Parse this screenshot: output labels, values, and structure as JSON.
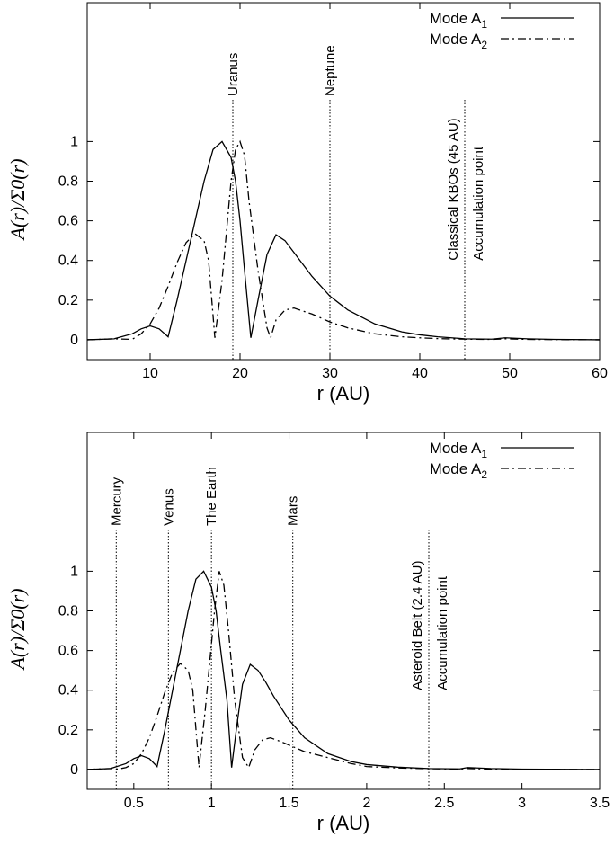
{
  "chart_data": [
    {
      "type": "line",
      "xlabel": "r (AU)",
      "ylabel": "A(r)/Σ0(r)",
      "xlim": [
        3,
        60
      ],
      "ylim": [
        -0.1,
        1.7
      ],
      "xticks": [
        10,
        20,
        30,
        40,
        50,
        60
      ],
      "yticks": [
        0,
        0.2,
        0.4,
        0.6,
        0.8,
        1
      ],
      "legend": {
        "placement": "top-right",
        "entries": [
          {
            "label": "Mode A",
            "sub": "1",
            "style": "solid"
          },
          {
            "label": "Mode A",
            "sub": "2",
            "style": "dash-dot"
          }
        ]
      },
      "annotations": [
        {
          "x": 19.2,
          "label": "Uranus"
        },
        {
          "x": 30.0,
          "label": "Neptune"
        },
        {
          "x": 45.0,
          "label": "Classical KBOs (45 AU)",
          "label2": "Accumulation point"
        }
      ],
      "series": [
        {
          "name": "Mode A1",
          "style": "solid",
          "x": [
            3,
            6,
            8,
            9,
            10,
            11,
            12,
            13,
            14,
            15,
            16,
            17,
            18,
            19,
            19.5,
            20,
            20.5,
            21.2,
            22,
            23,
            24,
            25,
            26,
            28,
            30,
            32,
            35,
            38,
            40,
            42,
            45,
            48,
            49.5,
            52,
            55,
            60
          ],
          "y": [
            0,
            0.005,
            0.03,
            0.055,
            0.07,
            0.055,
            0.015,
            0.2,
            0.4,
            0.6,
            0.8,
            0.96,
            1.0,
            0.92,
            0.8,
            0.6,
            0.35,
            0.01,
            0.2,
            0.43,
            0.53,
            0.5,
            0.44,
            0.32,
            0.22,
            0.15,
            0.08,
            0.04,
            0.025,
            0.015,
            0.005,
            0.003,
            0.01,
            0.005,
            0.002,
            0
          ]
        },
        {
          "name": "Mode A2",
          "style": "dash-dot",
          "x": [
            3,
            6,
            8,
            9,
            10,
            11,
            12,
            13,
            14,
            15,
            16,
            16.5,
            17.2,
            18,
            18.5,
            19,
            19.5,
            20,
            20.5,
            21,
            22,
            23,
            23.4,
            24,
            25,
            26,
            28,
            30,
            32,
            35,
            38,
            40,
            42,
            45,
            48,
            49.5,
            52,
            55,
            60
          ],
          "y": [
            0,
            0.005,
            0.002,
            0.03,
            0.08,
            0.16,
            0.27,
            0.39,
            0.49,
            0.535,
            0.5,
            0.4,
            0.01,
            0.3,
            0.55,
            0.8,
            0.96,
            1.0,
            0.93,
            0.7,
            0.35,
            0.06,
            0.01,
            0.1,
            0.15,
            0.16,
            0.13,
            0.09,
            0.06,
            0.03,
            0.015,
            0.01,
            0.006,
            0.003,
            0.002,
            0.005,
            0.002,
            0.001,
            0
          ]
        }
      ]
    },
    {
      "type": "line",
      "xlabel": "r (AU)",
      "ylabel": "A(r)/Σ0(r)",
      "xlim": [
        0.2,
        3.5
      ],
      "ylim": [
        -0.1,
        1.7
      ],
      "xticks": [
        0.5,
        1,
        1.5,
        2,
        2.5,
        3,
        3.5
      ],
      "xticklabels": [
        "0.5",
        "1",
        "1.5",
        "2",
        "2.5",
        "3",
        "3.5"
      ],
      "yticks": [
        0,
        0.2,
        0.4,
        0.6,
        0.8,
        1
      ],
      "legend": {
        "placement": "top-right",
        "entries": [
          {
            "label": "Mode A",
            "sub": "1",
            "style": "solid"
          },
          {
            "label": "Mode A",
            "sub": "2",
            "style": "dash-dot"
          }
        ]
      },
      "annotations": [
        {
          "x": 0.387,
          "label": "Mercury"
        },
        {
          "x": 0.723,
          "label": "Venus"
        },
        {
          "x": 1.0,
          "label": "The Earth"
        },
        {
          "x": 1.524,
          "label": "Mars"
        },
        {
          "x": 2.4,
          "label": "Asteroid Belt (2.4 AU)",
          "label2": "Accumulation point"
        }
      ],
      "series": [
        {
          "name": "Mode A1",
          "style": "solid",
          "x": [
            0.2,
            0.35,
            0.45,
            0.5,
            0.55,
            0.6,
            0.65,
            0.7,
            0.75,
            0.8,
            0.85,
            0.9,
            0.95,
            1.0,
            1.03,
            1.06,
            1.1,
            1.13,
            1.16,
            1.2,
            1.25,
            1.3,
            1.35,
            1.4,
            1.5,
            1.6,
            1.75,
            1.9,
            2.0,
            2.2,
            2.4,
            2.6,
            2.65,
            2.8,
            3.0,
            3.5
          ],
          "y": [
            0,
            0.005,
            0.03,
            0.055,
            0.07,
            0.055,
            0.015,
            0.2,
            0.4,
            0.6,
            0.8,
            0.96,
            1.0,
            0.92,
            0.8,
            0.6,
            0.35,
            0.01,
            0.2,
            0.43,
            0.53,
            0.5,
            0.44,
            0.37,
            0.25,
            0.16,
            0.08,
            0.04,
            0.025,
            0.012,
            0.005,
            0.003,
            0.01,
            0.005,
            0.002,
            0
          ]
        },
        {
          "name": "Mode A2",
          "style": "dash-dot",
          "x": [
            0.2,
            0.35,
            0.4,
            0.45,
            0.5,
            0.55,
            0.6,
            0.65,
            0.7,
            0.75,
            0.8,
            0.85,
            0.88,
            0.92,
            0.96,
            0.99,
            1.02,
            1.05,
            1.08,
            1.11,
            1.15,
            1.2,
            1.24,
            1.28,
            1.33,
            1.38,
            1.45,
            1.6,
            1.75,
            1.9,
            2.0,
            2.2,
            2.4,
            2.6,
            2.65,
            2.8,
            3.0,
            3.5
          ],
          "y": [
            0,
            0.005,
            0.002,
            0.01,
            0.03,
            0.08,
            0.16,
            0.27,
            0.39,
            0.49,
            0.535,
            0.5,
            0.4,
            0.01,
            0.3,
            0.55,
            0.8,
            1.0,
            0.93,
            0.7,
            0.35,
            0.06,
            0.01,
            0.1,
            0.15,
            0.16,
            0.14,
            0.09,
            0.06,
            0.03,
            0.015,
            0.008,
            0.004,
            0.002,
            0.005,
            0.002,
            0.001,
            0
          ]
        }
      ]
    }
  ]
}
